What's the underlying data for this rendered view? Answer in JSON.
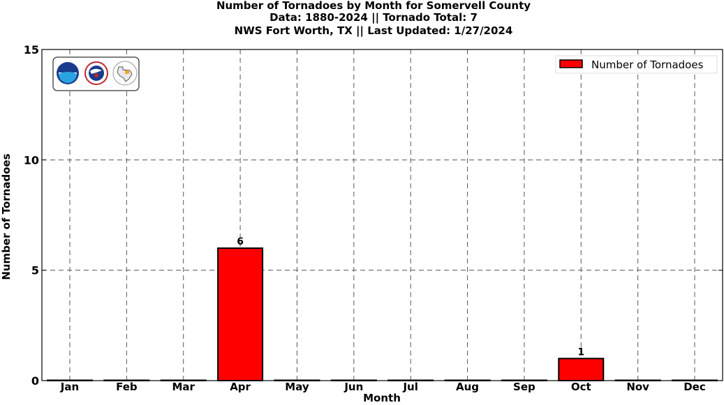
{
  "chart_data": {
    "type": "bar",
    "title_lines": [
      "Number of Tornadoes by Month for Somervell County",
      "Data: 1880-2024 || Tornado Total: 7",
      "NWS Fort Worth, TX || Last Updated: 1/27/2024"
    ],
    "xlabel": "Month",
    "ylabel": "Number of Tornadoes",
    "categories": [
      "Jan",
      "Feb",
      "Mar",
      "Apr",
      "May",
      "Jun",
      "Jul",
      "Aug",
      "Sep",
      "Oct",
      "Nov",
      "Dec"
    ],
    "series": [
      {
        "name": "Number of Tornadoes",
        "values": [
          0,
          0,
          0,
          6,
          0,
          0,
          0,
          0,
          0,
          1,
          0,
          0
        ]
      }
    ],
    "data_labels": [
      "",
      "",
      "",
      "6",
      "",
      "",
      "",
      "",
      "",
      "1",
      "",
      ""
    ],
    "ylim": [
      0,
      15
    ],
    "yticks": [
      0,
      5,
      10,
      15
    ],
    "grid": true,
    "legend_position": "top-right",
    "bar_color": "#ff0000",
    "logos": [
      "noaa-logo",
      "nws-logo",
      "texas-logo"
    ]
  }
}
